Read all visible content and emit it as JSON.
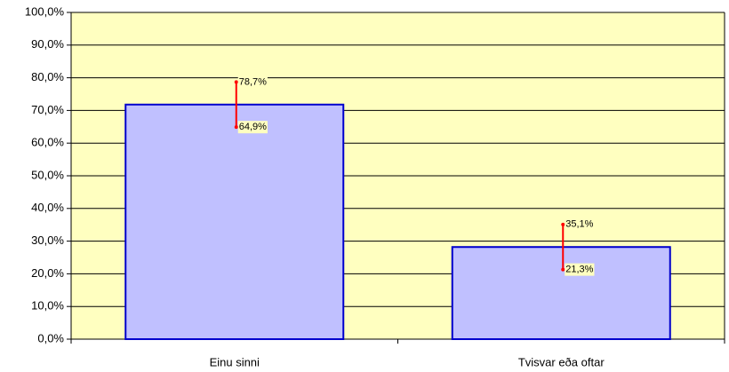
{
  "chart_data": {
    "type": "bar",
    "categories": [
      "Einu sinni",
      "Tvisvar eða oftar"
    ],
    "values": [
      71.8,
      28.2
    ],
    "low": [
      64.9,
      21.3
    ],
    "low_labels": [
      "64,9%",
      "21,3%"
    ],
    "high": [
      78.7,
      35.1
    ],
    "high_labels": [
      "78,7%",
      "35,1%"
    ],
    "color": "#c0c0ff",
    "edge_color": "#0000cc",
    "error_color": "#ff0000",
    "background": "#ffffc0",
    "ylim": [
      0,
      100
    ],
    "yticks": [
      {
        "value": 0,
        "label": "0,0%"
      },
      {
        "value": 10,
        "label": "10,0%"
      },
      {
        "value": 20,
        "label": "20,0%"
      },
      {
        "value": 30,
        "label": "30,0%"
      },
      {
        "value": 40,
        "label": "40,0%"
      },
      {
        "value": 50,
        "label": "50,0%"
      },
      {
        "value": 60,
        "label": "60,0%"
      },
      {
        "value": 70,
        "label": "70,0%"
      },
      {
        "value": 80,
        "label": "80,0%"
      },
      {
        "value": 90,
        "label": "90,0%"
      },
      {
        "value": 100,
        "label": "100,0%"
      }
    ],
    "grid": true
  }
}
